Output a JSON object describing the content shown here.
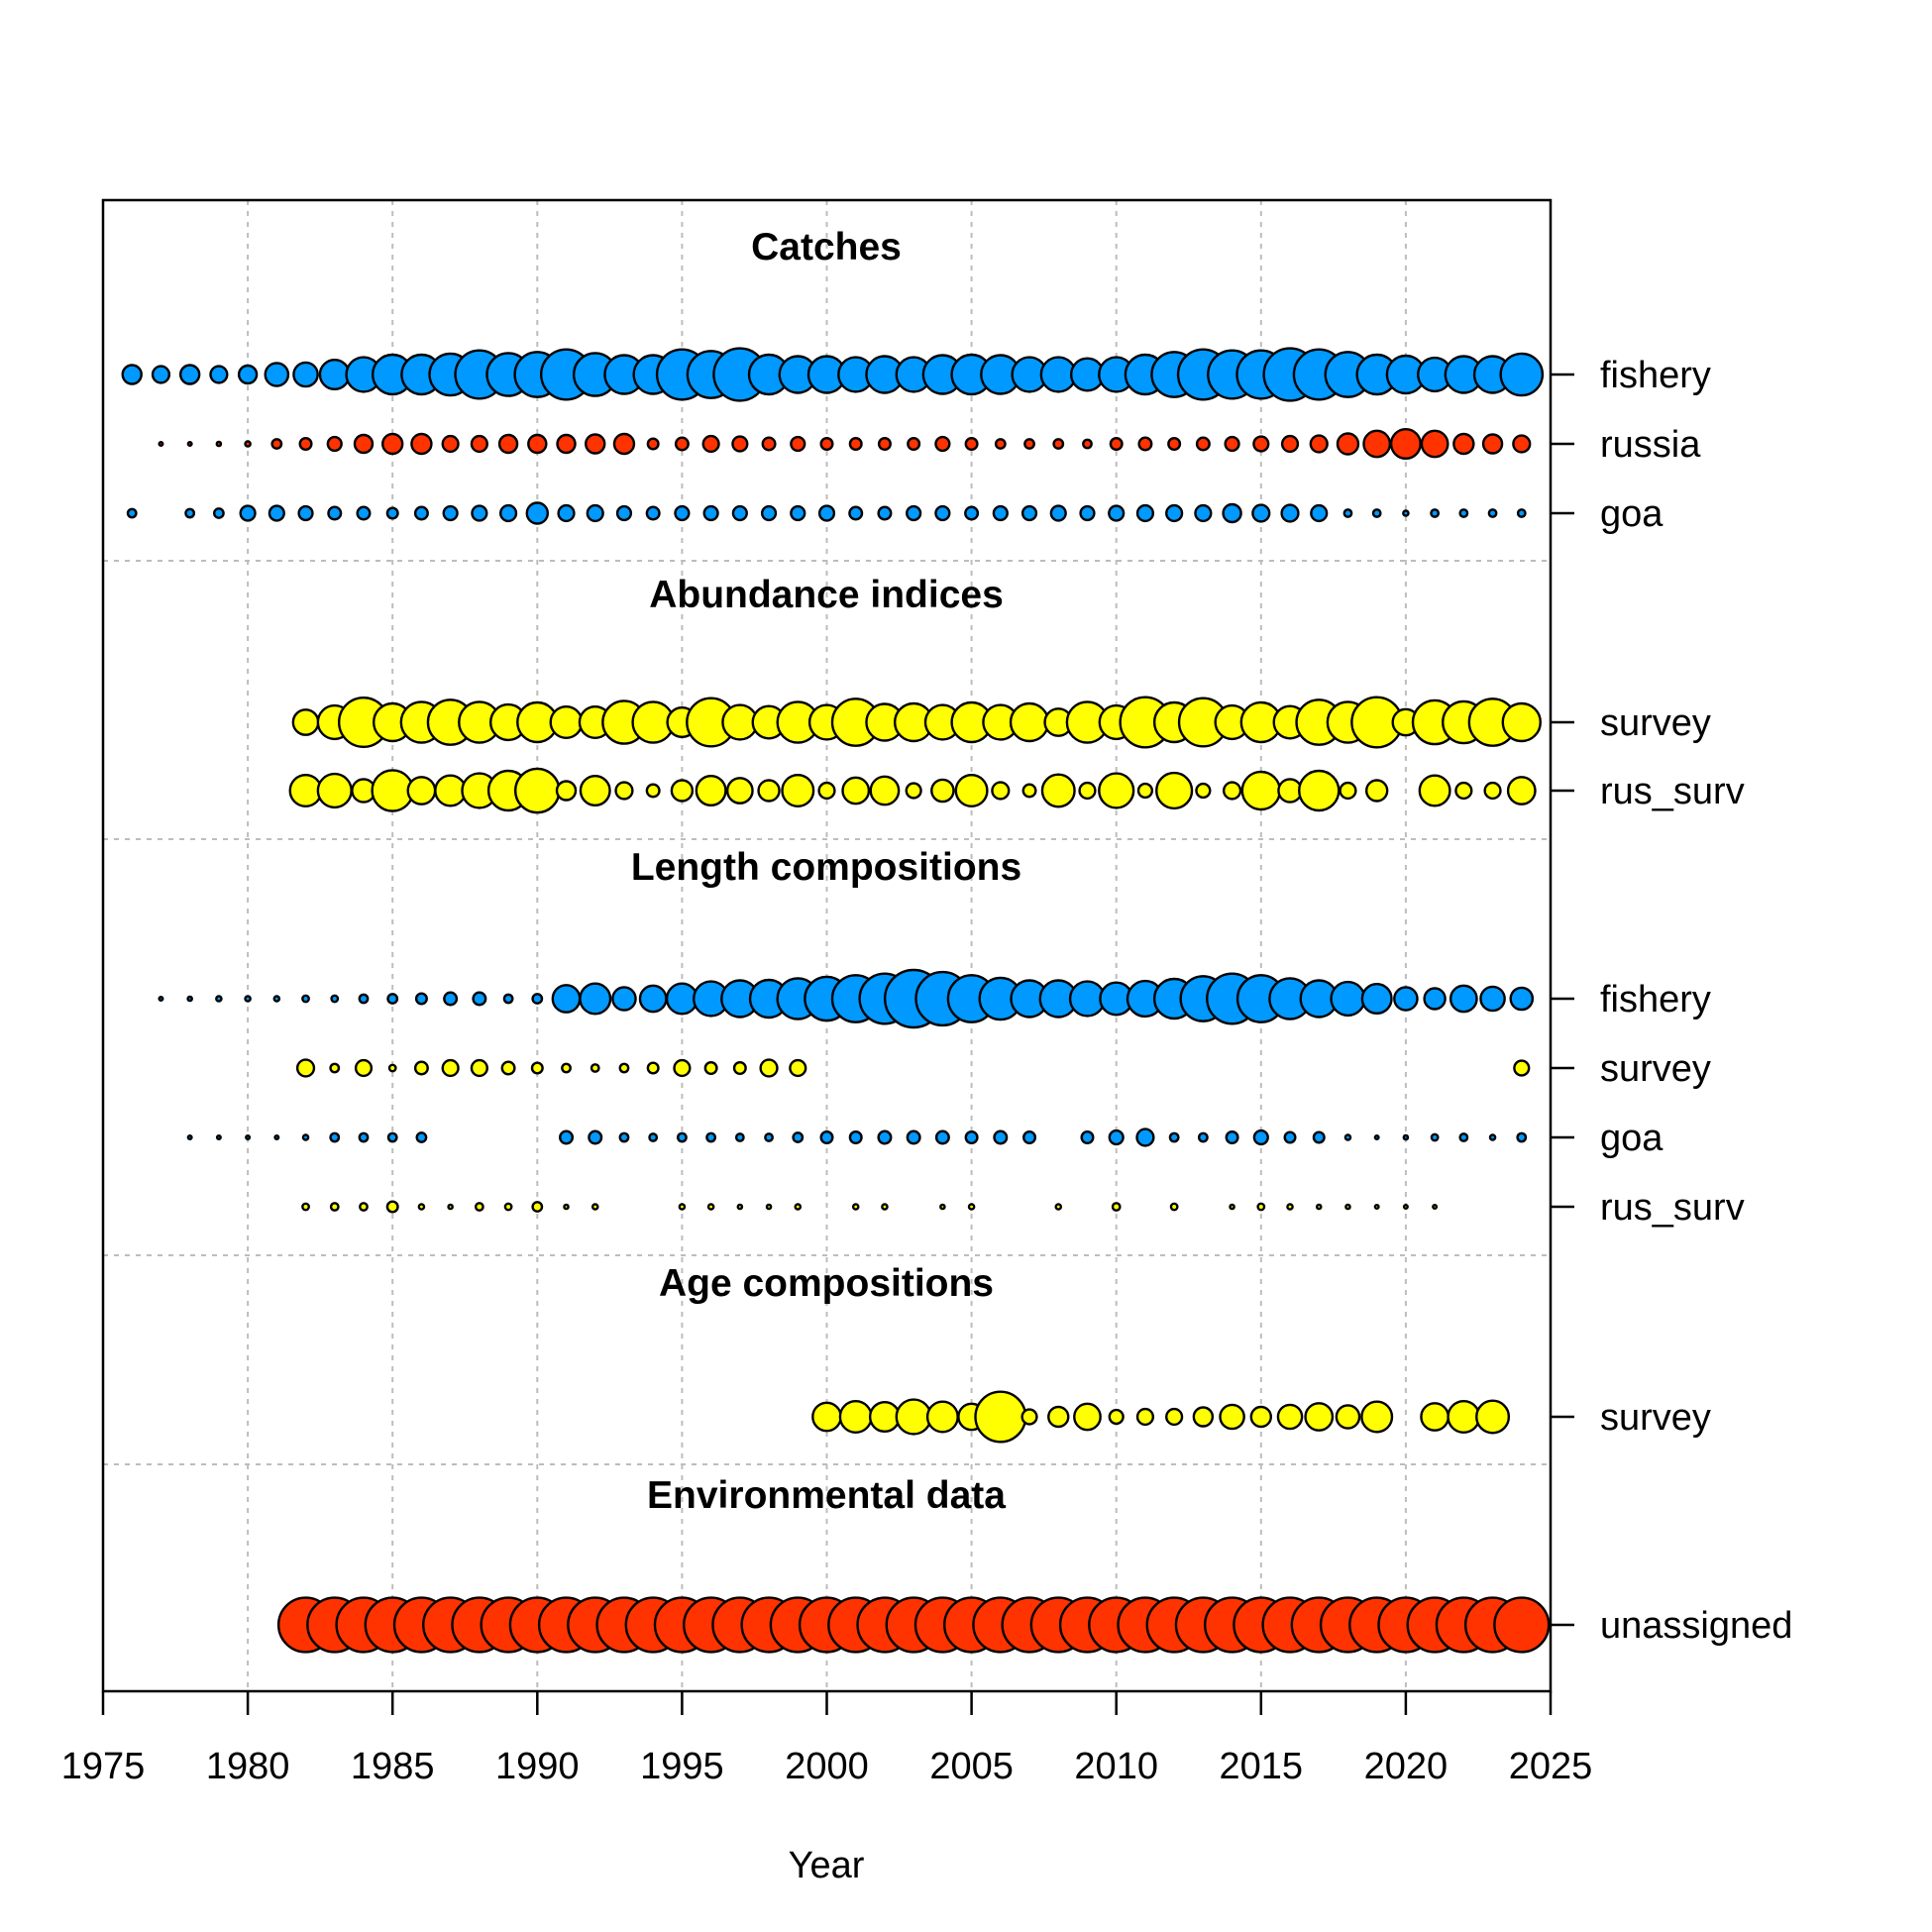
{
  "chart_data": {
    "type": "scatter",
    "subtype": "bubble",
    "xlabel": "Year",
    "xlim": [
      1975,
      2025
    ],
    "x_ticks": [
      "1975",
      "1980",
      "1985",
      "1990",
      "1995",
      "2000",
      "2005",
      "2010",
      "2015",
      "2020",
      "2025"
    ],
    "grid": true,
    "sections": [
      {
        "title": "Catches",
        "rows": [
          {
            "label": "fishery",
            "color": "#0099ff",
            "years": [
              1976,
              1977,
              1978,
              1979,
              1980,
              1981,
              1982,
              1983,
              1984,
              1985,
              1986,
              1987,
              1988,
              1989,
              1990,
              1991,
              1992,
              1993,
              1994,
              1995,
              1996,
              1997,
              1998,
              1999,
              2000,
              2001,
              2002,
              2003,
              2004,
              2005,
              2006,
              2007,
              2008,
              2009,
              2010,
              2011,
              2012,
              2013,
              2014,
              2015,
              2016,
              2017,
              2018,
              2019,
              2020,
              2021,
              2022,
              2023,
              2024
            ],
            "sizes": [
              0.18,
              0.16,
              0.18,
              0.16,
              0.17,
              0.22,
              0.23,
              0.28,
              0.33,
              0.38,
              0.38,
              0.4,
              0.46,
              0.41,
              0.43,
              0.48,
              0.41,
              0.37,
              0.37,
              0.48,
              0.45,
              0.5,
              0.38,
              0.35,
              0.35,
              0.33,
              0.35,
              0.33,
              0.37,
              0.38,
              0.37,
              0.33,
              0.33,
              0.31,
              0.33,
              0.38,
              0.43,
              0.48,
              0.46,
              0.46,
              0.5,
              0.48,
              0.43,
              0.38,
              0.36,
              0.32,
              0.35,
              0.35,
              0.4
            ]
          },
          {
            "label": "russia",
            "color": "#ff3300",
            "years": [
              1977,
              1978,
              1979,
              1980,
              1981,
              1982,
              1983,
              1984,
              1985,
              1986,
              1987,
              1988,
              1989,
              1990,
              1991,
              1992,
              1993,
              1994,
              1995,
              1996,
              1997,
              1998,
              1999,
              2000,
              2001,
              2002,
              2003,
              2004,
              2005,
              2006,
              2007,
              2008,
              2009,
              2010,
              2011,
              2012,
              2013,
              2014,
              2015,
              2016,
              2017,
              2018,
              2019,
              2020,
              2021,
              2022,
              2023,
              2024
            ],
            "sizes": [
              0.03,
              0.03,
              0.04,
              0.05,
              0.09,
              0.11,
              0.13,
              0.17,
              0.19,
              0.19,
              0.15,
              0.15,
              0.17,
              0.17,
              0.17,
              0.18,
              0.19,
              0.1,
              0.12,
              0.15,
              0.14,
              0.12,
              0.13,
              0.11,
              0.11,
              0.11,
              0.11,
              0.13,
              0.11,
              0.09,
              0.09,
              0.09,
              0.08,
              0.11,
              0.12,
              0.11,
              0.12,
              0.13,
              0.14,
              0.15,
              0.16,
              0.2,
              0.25,
              0.28,
              0.25,
              0.19,
              0.18,
              0.16
            ]
          },
          {
            "label": "goa",
            "color": "#0099ff",
            "years": [
              1976,
              1978,
              1979,
              1980,
              1981,
              1982,
              1983,
              1984,
              1985,
              1986,
              1987,
              1988,
              1989,
              1990,
              1991,
              1992,
              1993,
              1994,
              1995,
              1996,
              1997,
              1998,
              1999,
              2000,
              2001,
              2002,
              2003,
              2004,
              2005,
              2006,
              2007,
              2008,
              2009,
              2010,
              2011,
              2012,
              2013,
              2014,
              2015,
              2016,
              2017,
              2018,
              2019,
              2020,
              2021,
              2022,
              2023,
              2024
            ],
            "sizes": [
              0.08,
              0.08,
              0.09,
              0.14,
              0.14,
              0.13,
              0.12,
              0.12,
              0.1,
              0.12,
              0.13,
              0.14,
              0.15,
              0.2,
              0.15,
              0.15,
              0.13,
              0.12,
              0.13,
              0.13,
              0.13,
              0.13,
              0.13,
              0.14,
              0.12,
              0.12,
              0.13,
              0.13,
              0.12,
              0.13,
              0.13,
              0.14,
              0.13,
              0.14,
              0.15,
              0.15,
              0.15,
              0.17,
              0.16,
              0.16,
              0.15,
              0.07,
              0.07,
              0.05,
              0.07,
              0.07,
              0.07,
              0.07
            ]
          }
        ]
      },
      {
        "title": "Abundance indices",
        "rows": [
          {
            "label": "survey",
            "color": "#ffff00",
            "years": [
              1982,
              1983,
              1984,
              1985,
              1986,
              1987,
              1988,
              1989,
              1990,
              1991,
              1992,
              1993,
              1994,
              1995,
              1996,
              1997,
              1998,
              1999,
              2000,
              2001,
              2002,
              2003,
              2004,
              2005,
              2006,
              2007,
              2008,
              2009,
              2010,
              2011,
              2012,
              2013,
              2014,
              2015,
              2016,
              2017,
              2018,
              2019,
              2020,
              2021,
              2022,
              2023,
              2024
            ],
            "sizes": [
              0.24,
              0.32,
              0.47,
              0.36,
              0.39,
              0.43,
              0.39,
              0.34,
              0.38,
              0.3,
              0.3,
              0.41,
              0.39,
              0.28,
              0.46,
              0.33,
              0.31,
              0.39,
              0.33,
              0.45,
              0.35,
              0.36,
              0.33,
              0.38,
              0.33,
              0.36,
              0.26,
              0.39,
              0.32,
              0.48,
              0.38,
              0.46,
              0.32,
              0.38,
              0.31,
              0.43,
              0.39,
              0.48,
              0.25,
              0.42,
              0.4,
              0.45,
              0.36
            ]
          },
          {
            "label": "rus_surv",
            "color": "#ffff00",
            "years": [
              1982,
              1983,
              1984,
              1985,
              1986,
              1987,
              1988,
              1989,
              1990,
              1991,
              1992,
              1993,
              1994,
              1995,
              1996,
              1997,
              1998,
              1999,
              2000,
              2001,
              2002,
              2003,
              2004,
              2005,
              2006,
              2007,
              2008,
              2009,
              2010,
              2011,
              2012,
              2013,
              2014,
              2015,
              2016,
              2017,
              2018,
              2019,
              2021,
              2022,
              2023,
              2024
            ],
            "sizes": [
              0.3,
              0.32,
              0.22,
              0.39,
              0.26,
              0.29,
              0.33,
              0.38,
              0.42,
              0.18,
              0.28,
              0.16,
              0.12,
              0.2,
              0.28,
              0.24,
              0.2,
              0.3,
              0.15,
              0.25,
              0.27,
              0.14,
              0.21,
              0.3,
              0.16,
              0.12,
              0.31,
              0.15,
              0.33,
              0.13,
              0.34,
              0.13,
              0.16,
              0.36,
              0.22,
              0.38,
              0.15,
              0.2,
              0.29,
              0.15,
              0.15,
              0.26
            ]
          }
        ]
      },
      {
        "title": "Length compositions",
        "rows": [
          {
            "label": "fishery",
            "color": "#0099ff",
            "years": [
              1977,
              1978,
              1979,
              1980,
              1981,
              1982,
              1983,
              1984,
              1985,
              1986,
              1987,
              1988,
              1989,
              1990,
              1991,
              1992,
              1993,
              1994,
              1995,
              1996,
              1997,
              1998,
              1999,
              2000,
              2001,
              2002,
              2003,
              2004,
              2005,
              2006,
              2007,
              2008,
              2009,
              2010,
              2011,
              2012,
              2013,
              2014,
              2015,
              2016,
              2017,
              2018,
              2019,
              2020,
              2021,
              2022,
              2023,
              2024
            ],
            "sizes": [
              0.03,
              0.04,
              0.05,
              0.05,
              0.05,
              0.06,
              0.06,
              0.08,
              0.09,
              0.1,
              0.12,
              0.12,
              0.08,
              0.09,
              0.26,
              0.29,
              0.22,
              0.25,
              0.29,
              0.33,
              0.35,
              0.36,
              0.39,
              0.42,
              0.45,
              0.48,
              0.55,
              0.51,
              0.45,
              0.4,
              0.35,
              0.35,
              0.33,
              0.31,
              0.34,
              0.38,
              0.43,
              0.48,
              0.45,
              0.39,
              0.35,
              0.32,
              0.28,
              0.22,
              0.2,
              0.25,
              0.23,
              0.21
            ]
          },
          {
            "label": "survey",
            "color": "#ffff00",
            "years": [
              1982,
              1983,
              1984,
              1985,
              1986,
              1987,
              1988,
              1989,
              1990,
              1991,
              1992,
              1993,
              1994,
              1995,
              1996,
              1997,
              1998,
              1999,
              2024
            ],
            "sizes": [
              0.16,
              0.08,
              0.15,
              0.06,
              0.12,
              0.15,
              0.15,
              0.12,
              0.1,
              0.08,
              0.07,
              0.08,
              0.1,
              0.15,
              0.11,
              0.11,
              0.16,
              0.15,
              0.14
            ]
          },
          {
            "label": "goa",
            "color": "#0099ff",
            "years": [
              1978,
              1979,
              1980,
              1981,
              1982,
              1983,
              1984,
              1985,
              1986,
              1991,
              1992,
              1993,
              1994,
              1995,
              1996,
              1997,
              1998,
              1999,
              2000,
              2001,
              2002,
              2003,
              2004,
              2005,
              2006,
              2007,
              2009,
              2010,
              2011,
              2012,
              2013,
              2014,
              2015,
              2016,
              2017,
              2018,
              2019,
              2020,
              2021,
              2022,
              2023,
              2024
            ],
            "sizes": [
              0.03,
              0.03,
              0.03,
              0.03,
              0.05,
              0.08,
              0.08,
              0.08,
              0.09,
              0.12,
              0.12,
              0.08,
              0.07,
              0.08,
              0.08,
              0.07,
              0.07,
              0.09,
              0.11,
              0.11,
              0.12,
              0.12,
              0.12,
              0.11,
              0.12,
              0.11,
              0.11,
              0.13,
              0.16,
              0.08,
              0.08,
              0.11,
              0.13,
              0.1,
              0.1,
              0.05,
              0.03,
              0.04,
              0.06,
              0.07,
              0.05,
              0.08
            ]
          },
          {
            "label": "rus_surv",
            "color": "#ffff00",
            "years": [
              1982,
              1983,
              1984,
              1985,
              1986,
              1987,
              1988,
              1989,
              1990,
              1991,
              1992,
              1995,
              1996,
              1997,
              1998,
              1999,
              2001,
              2002,
              2004,
              2005,
              2008,
              2010,
              2012,
              2014,
              2015,
              2016,
              2017,
              2018,
              2019,
              2020,
              2021
            ],
            "sizes": [
              0.06,
              0.07,
              0.07,
              0.1,
              0.05,
              0.04,
              0.07,
              0.06,
              0.09,
              0.04,
              0.05,
              0.05,
              0.05,
              0.04,
              0.04,
              0.05,
              0.05,
              0.05,
              0.04,
              0.05,
              0.05,
              0.07,
              0.06,
              0.04,
              0.06,
              0.05,
              0.04,
              0.04,
              0.03,
              0.03,
              0.03
            ]
          }
        ]
      },
      {
        "title": "Age compositions",
        "rows": [
          {
            "label": "survey",
            "color": "#ffff00",
            "years": [
              2000,
              2001,
              2002,
              2003,
              2004,
              2005,
              2006,
              2007,
              2008,
              2009,
              2010,
              2011,
              2012,
              2013,
              2014,
              2015,
              2016,
              2017,
              2018,
              2019,
              2021,
              2022,
              2023
            ],
            "sizes": [
              0.27,
              0.3,
              0.28,
              0.33,
              0.29,
              0.25,
              0.48,
              0.14,
              0.19,
              0.25,
              0.13,
              0.15,
              0.15,
              0.18,
              0.23,
              0.19,
              0.23,
              0.26,
              0.22,
              0.29,
              0.26,
              0.3,
              0.31
            ]
          }
        ]
      },
      {
        "title": "Environmental data",
        "rows": [
          {
            "label": "unassigned",
            "color": "#ff3300",
            "years": [
              1982,
              1983,
              1984,
              1985,
              1986,
              1987,
              1988,
              1989,
              1990,
              1991,
              1992,
              1993,
              1994,
              1995,
              1996,
              1997,
              1998,
              1999,
              2000,
              2001,
              2002,
              2003,
              2004,
              2005,
              2006,
              2007,
              2008,
              2009,
              2010,
              2011,
              2012,
              2013,
              2014,
              2015,
              2016,
              2017,
              2018,
              2019,
              2020,
              2021,
              2022,
              2023,
              2024
            ],
            "sizes": [
              0.52,
              0.52,
              0.52,
              0.52,
              0.52,
              0.52,
              0.52,
              0.52,
              0.52,
              0.52,
              0.52,
              0.52,
              0.52,
              0.52,
              0.52,
              0.52,
              0.52,
              0.52,
              0.52,
              0.52,
              0.52,
              0.52,
              0.52,
              0.52,
              0.52,
              0.52,
              0.52,
              0.52,
              0.52,
              0.52,
              0.52,
              0.52,
              0.52,
              0.52,
              0.52,
              0.52,
              0.52,
              0.52,
              0.52,
              0.52,
              0.52,
              0.52,
              0.52
            ]
          }
        ]
      }
    ]
  }
}
